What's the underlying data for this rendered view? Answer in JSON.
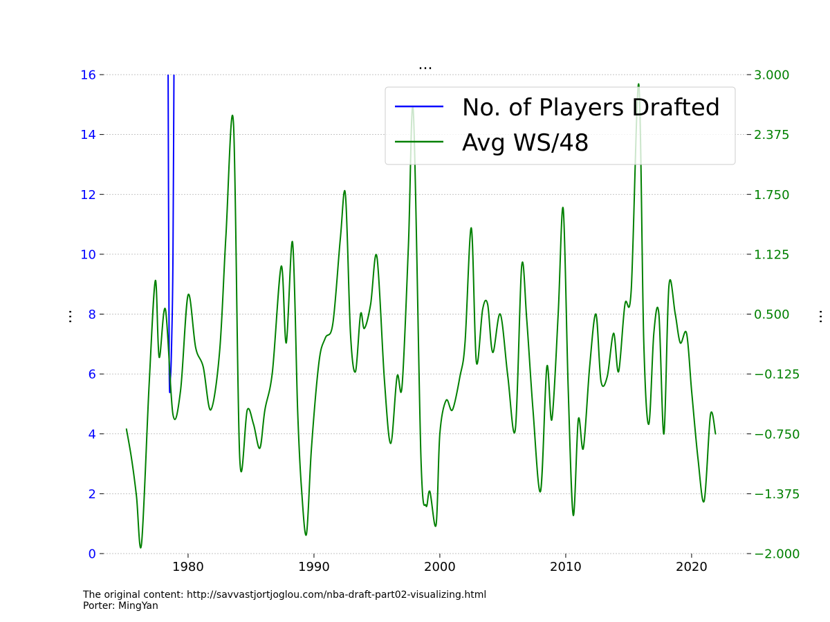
{
  "chart_data": {
    "type": "line",
    "title": "...",
    "ylabel_left": "...",
    "ylabel_right": "...",
    "x_ticks": [
      "1980",
      "1990",
      "2000",
      "2010",
      "2020"
    ],
    "x_tick_values": [
      1980,
      1990,
      2000,
      2010,
      2020
    ],
    "xlim": [
      1973.3,
      2024.4
    ],
    "left_axis": {
      "ylim": [
        0,
        16
      ],
      "tick_values": [
        0,
        2,
        4,
        6,
        8,
        10,
        12,
        14,
        16
      ],
      "tick_labels": [
        "0",
        "2",
        "4",
        "6",
        "8",
        "10",
        "12",
        "14",
        "16"
      ],
      "color": "#0000ff"
    },
    "right_axis": {
      "ylim": [
        -2.0,
        3.0
      ],
      "tick_values": [
        -2.0,
        -1.375,
        -0.75,
        -0.125,
        0.5,
        1.125,
        1.75,
        2.375,
        3.0
      ],
      "tick_labels": [
        "−2.000",
        "−1.375",
        "−0.750",
        "−0.125",
        "0.500",
        "1.125",
        "1.750",
        "2.375",
        "3.000"
      ],
      "color": "#008000"
    },
    "grid": true,
    "legend_position": "top-right",
    "series": [
      {
        "name": "No. of Players Drafted",
        "axis": "left",
        "color": "#0000ff",
        "x": [
          1978.4,
          1978.5,
          1978.6,
          1978.7,
          1978.8,
          1978.9
        ],
        "y": [
          18.0,
          6.5,
          5.9,
          7.2,
          10.0,
          18.0
        ]
      },
      {
        "name": "Avg WS/48",
        "axis": "right",
        "color": "#008000",
        "x": [
          1975.1,
          1975.5,
          1975.9,
          1976.3,
          1976.9,
          1977.4,
          1977.7,
          1978.2,
          1978.8,
          1979.4,
          1980.0,
          1980.6,
          1981.2,
          1981.8,
          1982.5,
          1983.0,
          1983.6,
          1984.1,
          1984.7,
          1985.2,
          1985.7,
          1986.1,
          1986.7,
          1987.4,
          1987.8,
          1988.3,
          1988.7,
          1989.0,
          1989.4,
          1989.8,
          1990.4,
          1990.9,
          1991.5,
          1992.1,
          1992.5,
          1992.9,
          1993.3,
          1993.7,
          1994.0,
          1994.5,
          1995.0,
          1995.6,
          1996.1,
          1996.6,
          1997.0,
          1997.5,
          1997.9,
          1998.5,
          1998.9,
          1999.2,
          1999.7,
          2000.0,
          2000.5,
          2001.0,
          2001.6,
          2002.0,
          2002.5,
          2002.9,
          2003.4,
          2003.8,
          2004.2,
          2004.8,
          2005.4,
          2006.0,
          2006.5,
          2006.9,
          2007.4,
          2008.0,
          2008.5,
          2008.9,
          2009.4,
          2009.8,
          2010.2,
          2010.6,
          2011.0,
          2011.4,
          2011.9,
          2012.4,
          2012.8,
          2013.3,
          2013.8,
          2014.2,
          2014.7,
          2015.2,
          2015.8,
          2016.2,
          2016.6,
          2017.0,
          2017.4,
          2017.8,
          2018.2,
          2018.7,
          2019.1,
          2019.6,
          2020.0,
          2020.5,
          2021.0,
          2021.5,
          2021.9
        ],
        "y": [
          -0.7,
          -1.0,
          -1.4,
          -1.9,
          -0.25,
          0.85,
          0.05,
          0.55,
          -0.55,
          -0.3,
          0.7,
          0.15,
          -0.05,
          -0.5,
          0.1,
          1.3,
          2.5,
          -1.0,
          -0.5,
          -0.65,
          -0.9,
          -0.5,
          -0.1,
          1.0,
          0.2,
          1.25,
          -0.5,
          -1.3,
          -1.8,
          -0.9,
          0.0,
          0.25,
          0.4,
          1.3,
          1.75,
          0.3,
          -0.1,
          0.5,
          0.35,
          0.6,
          1.1,
          -0.2,
          -0.85,
          -0.15,
          -0.25,
          1.2,
          2.6,
          -1.0,
          -1.5,
          -1.35,
          -1.7,
          -0.75,
          -0.4,
          -0.5,
          -0.15,
          0.2,
          1.4,
          0.0,
          0.55,
          0.6,
          0.1,
          0.5,
          -0.15,
          -0.7,
          1.0,
          0.45,
          -0.5,
          -1.35,
          -0.05,
          -0.6,
          0.5,
          1.6,
          -0.3,
          -1.6,
          -0.6,
          -0.9,
          -0.05,
          0.5,
          -0.2,
          -0.15,
          0.3,
          -0.1,
          0.6,
          0.75,
          2.9,
          0.2,
          -0.65,
          0.3,
          0.5,
          -0.75,
          0.8,
          0.5,
          0.2,
          0.3,
          -0.3,
          -1.0,
          -1.45,
          -0.55,
          -0.75
        ]
      }
    ]
  },
  "footer": {
    "line1": "The original content: http://savvastjortjoglou.com/nba-draft-part02-visualizing.html",
    "line2": "Porter: MingYan"
  }
}
